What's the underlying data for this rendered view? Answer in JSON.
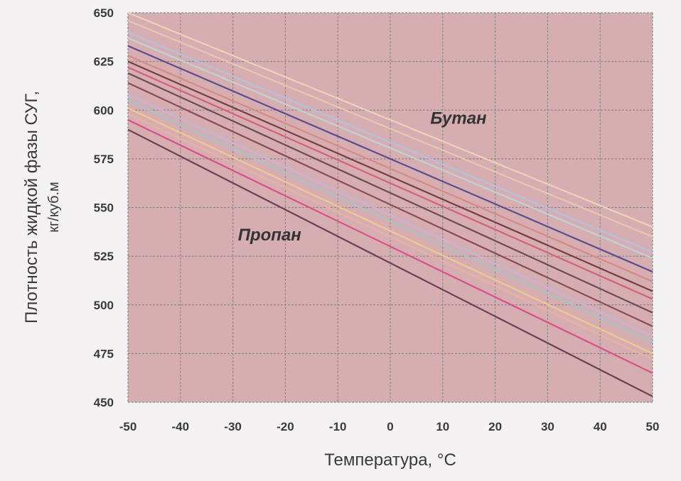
{
  "chart_data": {
    "type": "line",
    "xlabel": "Температура, °С",
    "ylabel_line1": "Плотность жидкой фазы СУГ,",
    "ylabel_line2": "кг/куб.м",
    "xlim": [
      -50,
      50
    ],
    "ylim": [
      450,
      650
    ],
    "xticks": [
      -50,
      -40,
      -30,
      -20,
      -10,
      0,
      10,
      20,
      30,
      40,
      50
    ],
    "yticks": [
      450,
      475,
      500,
      525,
      550,
      575,
      600,
      625,
      650
    ],
    "xtick_labels": [
      "-50",
      "-40",
      "-30",
      "-20",
      "-10",
      "0",
      "10",
      "20",
      "30",
      "40",
      "50"
    ],
    "ytick_labels": [
      "450",
      "475",
      "500",
      "525",
      "550",
      "575",
      "600",
      "625",
      "650"
    ],
    "grid": true,
    "plot_background": "#d6aeb2",
    "annotations": [
      {
        "text": "Бутан",
        "x": 13,
        "y": 593
      },
      {
        "text": "Пропан",
        "x": -23,
        "y": 533
      }
    ],
    "series": [
      {
        "color": "#eed3b8",
        "values": [
          [
            -50,
            650
          ],
          [
            50,
            540
          ]
        ]
      },
      {
        "color": "#e9c6ae",
        "values": [
          [
            -50,
            646
          ],
          [
            50,
            535
          ]
        ]
      },
      {
        "color": "#b2c0e0",
        "values": [
          [
            -50,
            640
          ],
          [
            50,
            527
          ]
        ]
      },
      {
        "color": "#bcd3d6",
        "values": [
          [
            -50,
            637
          ],
          [
            50,
            524
          ]
        ]
      },
      {
        "color": "#5a4c8e",
        "values": [
          [
            -50,
            633
          ],
          [
            50,
            517
          ]
        ]
      },
      {
        "color": "#d98a7e",
        "values": [
          [
            -50,
            628
          ],
          [
            50,
            512
          ]
        ]
      },
      {
        "color": "#7a3c40",
        "values": [
          [
            -50,
            625
          ],
          [
            50,
            507
          ]
        ]
      },
      {
        "color": "#d3607d",
        "values": [
          [
            -50,
            622
          ],
          [
            50,
            503
          ]
        ]
      },
      {
        "color": "#6e4a58",
        "values": [
          [
            -50,
            619
          ],
          [
            50,
            496
          ]
        ]
      },
      {
        "color": "#8a4a5a",
        "values": [
          [
            -50,
            614
          ],
          [
            50,
            489
          ]
        ]
      },
      {
        "color": "#c3b5da",
        "values": [
          [
            -50,
            608
          ],
          [
            50,
            484
          ]
        ]
      },
      {
        "color": "#a4c4cc",
        "values": [
          [
            -50,
            605
          ],
          [
            50,
            481
          ]
        ]
      },
      {
        "color": "#f0c890",
        "values": [
          [
            -50,
            601
          ],
          [
            50,
            475
          ]
        ]
      },
      {
        "color": "#e8b0a0",
        "values": [
          [
            -50,
            598
          ],
          [
            50,
            472
          ]
        ]
      },
      {
        "color": "#d94f8c",
        "values": [
          [
            -50,
            595
          ],
          [
            50,
            465
          ]
        ]
      },
      {
        "color": "#6b3f55",
        "values": [
          [
            -50,
            590
          ],
          [
            50,
            453
          ]
        ]
      }
    ]
  }
}
